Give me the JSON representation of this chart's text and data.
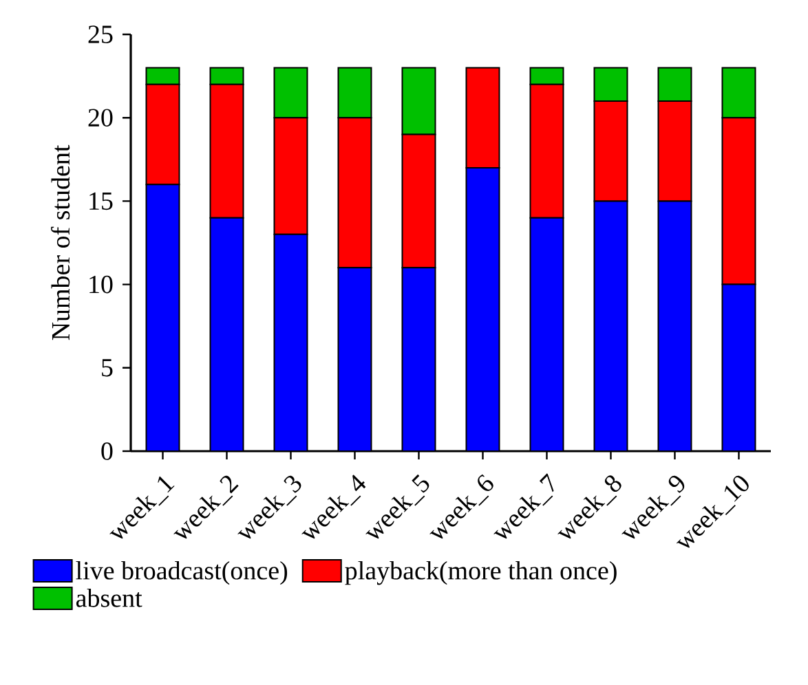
{
  "chart_data": {
    "type": "bar",
    "stacked": true,
    "ylabel": "Number of student",
    "categories": [
      "week_1",
      "week_2",
      "week_3",
      "week_4",
      "week_5",
      "week_6",
      "week_7",
      "week_8",
      "week_9",
      "week_10"
    ],
    "series": [
      {
        "name": "live broadcast(once)",
        "color": "#0000ff",
        "values": [
          16,
          14,
          13,
          11,
          11,
          17,
          14,
          15,
          15,
          10
        ]
      },
      {
        "name": "playback(more than once)",
        "color": "#ff0000",
        "values": [
          6,
          8,
          7,
          9,
          8,
          6,
          8,
          6,
          6,
          10
        ]
      },
      {
        "name": "absent",
        "color": "#00c000",
        "values": [
          1,
          1,
          3,
          3,
          4,
          0,
          1,
          2,
          2,
          3
        ]
      }
    ],
    "ylim": [
      0,
      25
    ],
    "yticks": [
      0,
      5,
      10,
      15,
      20,
      25
    ],
    "grid": false,
    "legend": "bottom"
  }
}
